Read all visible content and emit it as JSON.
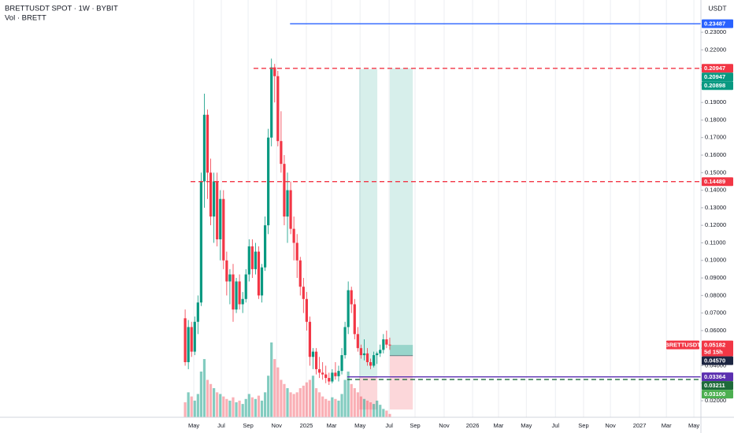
{
  "chart_data": {
    "type": "candlestick",
    "title": "BRETTUSDT SPOT · 1W · BYBIT",
    "subtitle": "Vol · BRETT",
    "currency": "USDT",
    "up_color": "#089981",
    "down_color": "#f23645",
    "x": [
      0,
      1,
      2,
      3,
      4,
      5,
      6,
      7,
      8,
      9,
      10,
      11,
      12,
      13,
      14,
      15,
      16,
      17,
      18,
      19,
      20,
      21,
      22,
      23,
      24,
      25,
      26,
      27,
      28,
      29,
      30,
      31,
      32,
      33,
      34,
      35,
      36,
      37,
      38,
      39,
      40,
      41,
      42,
      43,
      44,
      45,
      46,
      47,
      48,
      49,
      50,
      51,
      52,
      53,
      54,
      55,
      56,
      57,
      58,
      59,
      60,
      61,
      62,
      63,
      64
    ],
    "open": [
      0.067,
      0.042,
      0.062,
      0.048,
      0.065,
      0.076,
      0.145,
      0.183,
      0.15,
      0.125,
      0.145,
      0.112,
      0.135,
      0.1,
      0.088,
      0.092,
      0.072,
      0.088,
      0.075,
      0.078,
      0.092,
      0.108,
      0.095,
      0.105,
      0.08,
      0.096,
      0.12,
      0.17,
      0.21,
      0.205,
      0.168,
      0.155,
      0.125,
      0.14,
      0.118,
      0.11,
      0.1,
      0.085,
      0.078,
      0.065,
      0.045,
      0.048,
      0.038,
      0.036,
      0.035,
      0.033,
      0.031,
      0.036,
      0.034,
      0.037,
      0.046,
      0.062,
      0.083,
      0.075,
      0.058,
      0.05,
      0.046,
      0.047,
      0.042,
      0.04,
      0.046,
      0.047,
      0.049,
      0.055,
      0.052
    ],
    "high": [
      0.072,
      0.066,
      0.065,
      0.068,
      0.08,
      0.15,
      0.195,
      0.186,
      0.158,
      0.15,
      0.15,
      0.14,
      0.14,
      0.105,
      0.095,
      0.098,
      0.09,
      0.092,
      0.082,
      0.095,
      0.112,
      0.112,
      0.11,
      0.108,
      0.098,
      0.125,
      0.175,
      0.215,
      0.212,
      0.208,
      0.185,
      0.16,
      0.15,
      0.145,
      0.125,
      0.115,
      0.102,
      0.09,
      0.082,
      0.068,
      0.05,
      0.05,
      0.045,
      0.042,
      0.04,
      0.036,
      0.038,
      0.042,
      0.04,
      0.05,
      0.065,
      0.088,
      0.085,
      0.078,
      0.062,
      0.052,
      0.055,
      0.05,
      0.044,
      0.048,
      0.048,
      0.052,
      0.058,
      0.06,
      0.056
    ],
    "low": [
      0.04,
      0.038,
      0.045,
      0.046,
      0.058,
      0.074,
      0.13,
      0.135,
      0.12,
      0.11,
      0.108,
      0.1,
      0.095,
      0.08,
      0.075,
      0.065,
      0.07,
      0.072,
      0.07,
      0.076,
      0.088,
      0.09,
      0.092,
      0.078,
      0.076,
      0.094,
      0.115,
      0.165,
      0.19,
      0.165,
      0.15,
      0.12,
      0.11,
      0.115,
      0.1,
      0.09,
      0.08,
      0.07,
      0.06,
      0.04,
      0.038,
      0.035,
      0.033,
      0.032,
      0.03,
      0.029,
      0.03,
      0.032,
      0.031,
      0.035,
      0.044,
      0.058,
      0.07,
      0.055,
      0.048,
      0.044,
      0.043,
      0.04,
      0.038,
      0.039,
      0.041,
      0.045,
      0.047,
      0.05,
      0.049
    ],
    "close": [
      0.042,
      0.062,
      0.048,
      0.065,
      0.076,
      0.145,
      0.183,
      0.15,
      0.125,
      0.145,
      0.112,
      0.135,
      0.1,
      0.088,
      0.092,
      0.072,
      0.088,
      0.075,
      0.078,
      0.092,
      0.108,
      0.095,
      0.105,
      0.08,
      0.096,
      0.12,
      0.17,
      0.21,
      0.205,
      0.168,
      0.155,
      0.125,
      0.14,
      0.118,
      0.11,
      0.1,
      0.085,
      0.078,
      0.065,
      0.045,
      0.048,
      0.038,
      0.036,
      0.035,
      0.033,
      0.031,
      0.036,
      0.034,
      0.037,
      0.046,
      0.062,
      0.083,
      0.075,
      0.058,
      0.05,
      0.046,
      0.047,
      0.042,
      0.04,
      0.046,
      0.047,
      0.049,
      0.055,
      0.052,
      0.05182
    ],
    "volume": [
      18,
      30,
      25,
      20,
      28,
      55,
      70,
      45,
      40,
      35,
      30,
      28,
      25,
      22,
      20,
      24,
      18,
      20,
      16,
      22,
      28,
      24,
      22,
      26,
      20,
      30,
      50,
      90,
      70,
      60,
      45,
      40,
      35,
      30,
      28,
      30,
      35,
      38,
      42,
      45,
      50,
      35,
      30,
      25,
      22,
      20,
      24,
      22,
      20,
      28,
      45,
      55,
      40,
      35,
      30,
      25,
      22,
      20,
      18,
      16,
      20,
      15,
      10,
      8,
      4
    ],
    "xlim": [
      -57.9,
      161.3
    ],
    "xticks": [
      {
        "value": 2.7,
        "label": "May"
      },
      {
        "value": 11.3,
        "label": "Jul"
      },
      {
        "value": 19.7,
        "label": "Sep"
      },
      {
        "value": 28.6,
        "label": "Nov"
      },
      {
        "value": 37.9,
        "label": "2025"
      },
      {
        "value": 45.8,
        "label": "Mar"
      },
      {
        "value": 54.7,
        "label": "May"
      },
      {
        "value": 63.8,
        "label": "Jul"
      },
      {
        "value": 71.9,
        "label": "Sep"
      },
      {
        "value": 81,
        "label": "Nov"
      },
      {
        "value": 89.9,
        "label": "2026"
      },
      {
        "value": 98,
        "label": "Mar"
      },
      {
        "value": 106.7,
        "label": "May"
      },
      {
        "value": 115.8,
        "label": "Jul"
      },
      {
        "value": 124.6,
        "label": "Sep"
      },
      {
        "value": 133,
        "label": "Nov"
      },
      {
        "value": 142.1,
        "label": "2027"
      },
      {
        "value": 150.5,
        "label": "Mar"
      },
      {
        "value": 159.1,
        "label": "May"
      }
    ],
    "ylim": [
      0.0106,
      0.2484
    ],
    "yticks": [
      {
        "value": 0.02,
        "label": "0.02000"
      },
      {
        "value": 0.03,
        "label": "0.03000"
      },
      {
        "value": 0.04,
        "label": "0.04000"
      },
      {
        "value": 0.05,
        "label": "0.05000"
      },
      {
        "value": 0.06,
        "label": "0.06000"
      },
      {
        "value": 0.07,
        "label": "0.07000"
      },
      {
        "value": 0.08,
        "label": "0.08000"
      },
      {
        "value": 0.09,
        "label": "0.09000"
      },
      {
        "value": 0.1,
        "label": "0.10000"
      },
      {
        "value": 0.11,
        "label": "0.11000"
      },
      {
        "value": 0.12,
        "label": "0.12000"
      },
      {
        "value": 0.13,
        "label": "0.13000"
      },
      {
        "value": 0.14,
        "label": "0.14000"
      },
      {
        "value": 0.15,
        "label": "0.15000"
      },
      {
        "value": 0.16,
        "label": "0.16000"
      },
      {
        "value": 0.17,
        "label": "0.17000"
      },
      {
        "value": 0.18,
        "label": "0.18000"
      },
      {
        "value": 0.19,
        "label": "0.19000"
      },
      {
        "value": 0.2,
        "label": "0.20000"
      },
      {
        "value": 0.21,
        "label": "0.21000"
      },
      {
        "value": 0.22,
        "label": "0.22000"
      },
      {
        "value": 0.23,
        "label": "0.23000"
      }
    ],
    "levels": [
      {
        "value": 0.23487,
        "label": "0.23487",
        "color": "#2962ff",
        "dash": false,
        "start": 32.8
      },
      {
        "value": 0.20947,
        "label": "0.20947",
        "color": "#f23645",
        "dash": true,
        "start": 21.4
      },
      {
        "value": 0.14489,
        "label": "0.14489",
        "color": "#f23645",
        "dash": true,
        "start": 1.7
      },
      {
        "value": 0.03364,
        "label": "0.03364",
        "color": "#5b2fb0",
        "dash": false,
        "start": 50.7
      },
      {
        "value": 0.03211,
        "label": "0.03211",
        "color": "#1e6b3a",
        "dash": true,
        "start": 50.7
      }
    ],
    "axis_tags": [
      {
        "value": 0.20947,
        "label": "0.20947",
        "color": "#089981"
      },
      {
        "value": 0.20898,
        "label": "0.20898",
        "color": "#089981"
      },
      {
        "value": 0.0457,
        "label": "0.04570",
        "color": "#1c2541"
      },
      {
        "value": 0.031,
        "label": "0.03100",
        "color": "#4caf50"
      }
    ],
    "last_price": {
      "value": 0.05182,
      "label": "0.05182",
      "name": "BRETTUSDT",
      "countdown": "5d 15h",
      "color": "#f23645"
    },
    "positions": [
      {
        "start": 54.4,
        "end": 60.1,
        "entry": 0.03364,
        "target": 0.20898,
        "stop": 0.015
      },
      {
        "start": 64,
        "end": 71.2,
        "entry": 0.0457,
        "target": 0.20947,
        "stop": 0.015
      }
    ]
  }
}
